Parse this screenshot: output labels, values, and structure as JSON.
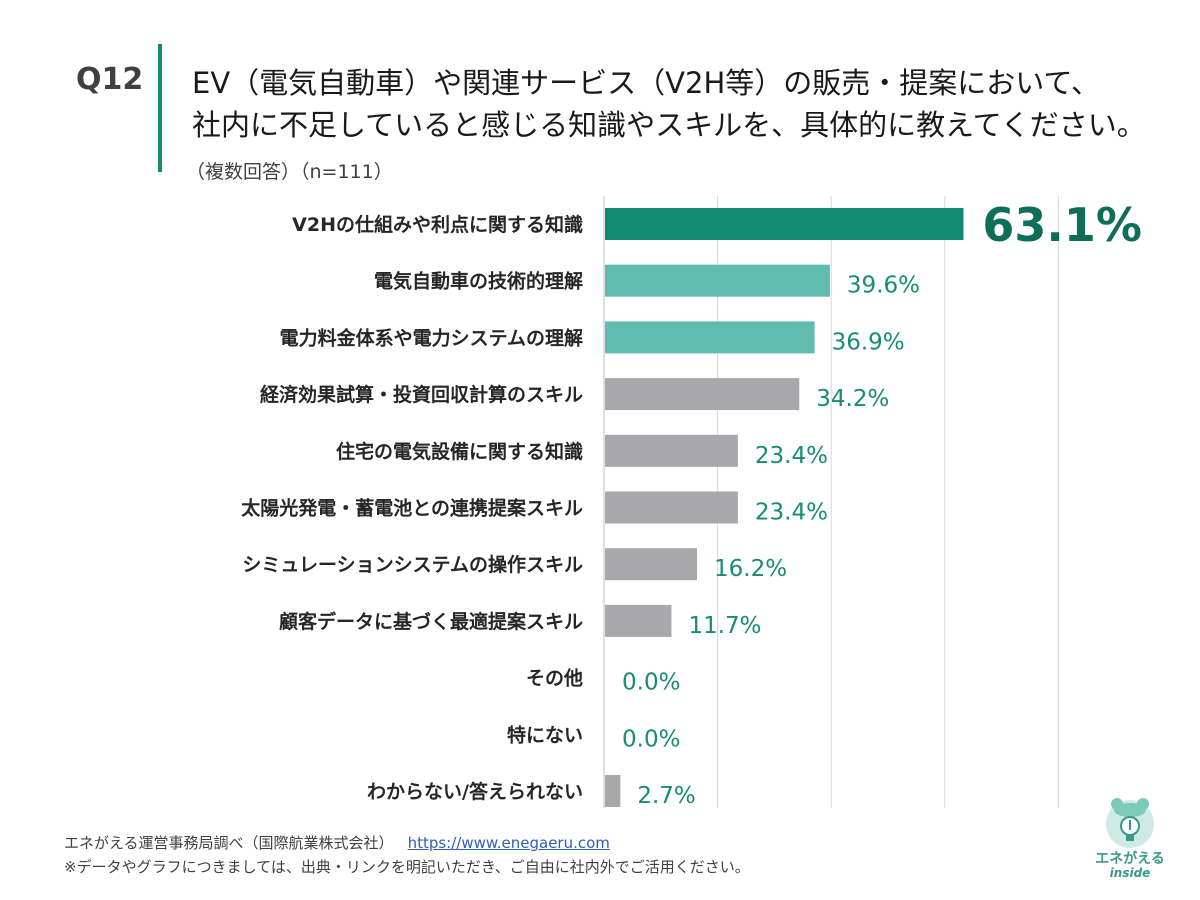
{
  "header": {
    "question_number": "Q12",
    "title_line1": "EV（電気自動車）や関連サービス（V2H等）の販売・提案において、",
    "title_line2": "社内に不足していると感じる知識やスキルを、具体的に教えてください。",
    "subtitle": "（複数回答）（n=111）"
  },
  "chart_data": {
    "type": "bar",
    "orientation": "horizontal",
    "categories": [
      "V2Hの仕組みや利点に関する知識",
      "電気自動車の技術的理解",
      "電力料金体系や電力システムの理解",
      "経済効果試算・投資回収計算のスキル",
      "住宅の電気設備に関する知識",
      "太陽光発電・蓄電池との連携提案スキル",
      "シミュレーションシステムの操作スキル",
      "顧客データに基づく最適提案スキル",
      "その他",
      "特にない",
      "わからない/答えられない"
    ],
    "values": [
      63.1,
      39.6,
      36.9,
      34.2,
      23.4,
      23.4,
      16.2,
      11.7,
      0.0,
      0.0,
      2.7
    ],
    "value_labels": [
      "63.1%",
      "39.6%",
      "36.9%",
      "34.2%",
      "23.4%",
      "23.4%",
      "16.2%",
      "11.7%",
      "0.0%",
      "0.0%",
      "2.7%"
    ],
    "unit": "%",
    "xlim": [
      0,
      80
    ],
    "grid": true,
    "colors": {
      "top": "#118a6f",
      "highlight": "#5fbcae",
      "default": "#a8a7a9",
      "label": "#178c73"
    },
    "highlight_levels": [
      "top",
      "highlight",
      "highlight",
      "default",
      "default",
      "default",
      "default",
      "default",
      "default",
      "default",
      "default"
    ]
  },
  "footer": {
    "source": "エネがえる運営事務局調べ（国際航業株式会社）",
    "url": "https://www.enegaeru.com",
    "note": "※データやグラフにつきましては、出典・リンクを明記いただき、ご自由に社内外でご活用ください。"
  },
  "logo": {
    "text_main": "エネがえる",
    "text_sub": "inside",
    "icon": "lightbulb-frog-icon"
  }
}
